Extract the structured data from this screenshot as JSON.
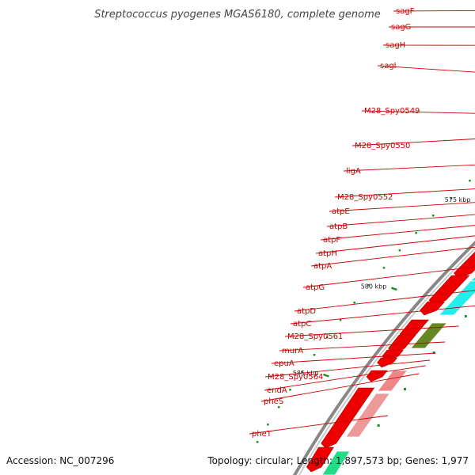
{
  "header": {
    "title": "Streptococcus pyogenes MGAS6180, complete genome"
  },
  "footer": {
    "accession": "Accession: NC_007296",
    "summary": "Topology: circular; Length: 1,897,573 bp; Genes: 1,977"
  },
  "ruler": {
    "ticks": [
      {
        "kbp": 565,
        "label": "565 kbp"
      },
      {
        "kbp": 570,
        "label": "570 kbp"
      },
      {
        "kbp": 575,
        "label": "575 kbp"
      },
      {
        "kbp": 580,
        "label": "580 kbp"
      },
      {
        "kbp": 585,
        "label": "585 kbp"
      }
    ]
  },
  "colors": {
    "backbone": "#888888",
    "gene_arrow": "#ee0000",
    "label": "#cc0000",
    "tick": "#228b22"
  },
  "genes": [
    {
      "name": "sagF"
    },
    {
      "name": "sagG"
    },
    {
      "name": "sagH"
    },
    {
      "name": "sagI"
    },
    {
      "name": "M28_Spy0549"
    },
    {
      "name": "M28_Spy0550"
    },
    {
      "name": "ligA"
    },
    {
      "name": "M28_Spy0552"
    },
    {
      "name": "atpE"
    },
    {
      "name": "atpB"
    },
    {
      "name": "atpF"
    },
    {
      "name": "atpH"
    },
    {
      "name": "atpA"
    },
    {
      "name": "atpG"
    },
    {
      "name": "atpD"
    },
    {
      "name": "atpC"
    },
    {
      "name": "M28_Spy0561"
    },
    {
      "name": "murA"
    },
    {
      "name": "epuA"
    },
    {
      "name": "M28_Spy0564"
    },
    {
      "name": "endA"
    },
    {
      "name": "pheS"
    },
    {
      "name": "pheT"
    }
  ]
}
